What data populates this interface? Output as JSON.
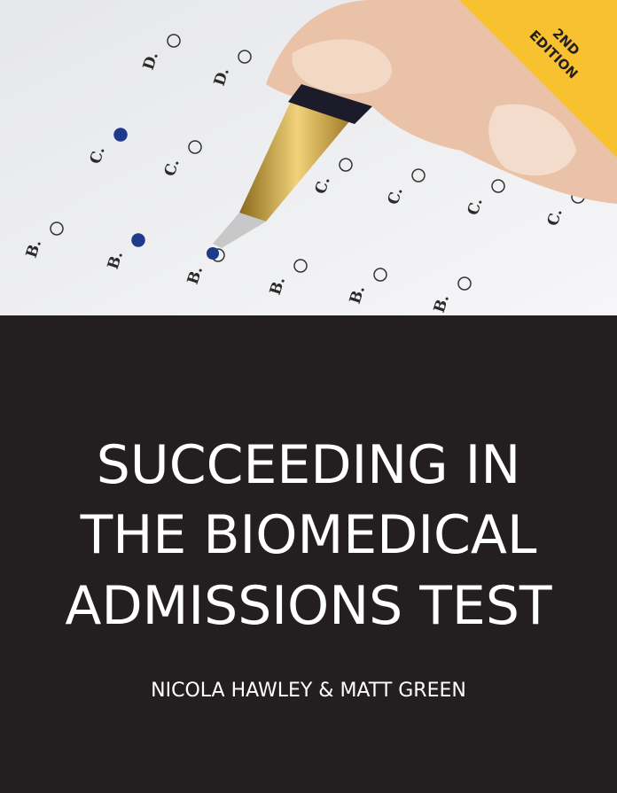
{
  "banner": {
    "lines": [
      "2ND",
      "EDITION"
    ]
  },
  "answer_sheet": {
    "labels": [
      "B.",
      "B.",
      "B.",
      "B.",
      "B.",
      "B.",
      "C.",
      "C.",
      "C.",
      "C.",
      "C.",
      "C.",
      "D.",
      "D."
    ]
  },
  "title": {
    "lines": [
      "SUCCEEDING IN",
      "THE BIOMEDICAL",
      "ADMISSIONS TEST"
    ]
  },
  "authors": "NICOLA HAWLEY & MATT GREEN"
}
